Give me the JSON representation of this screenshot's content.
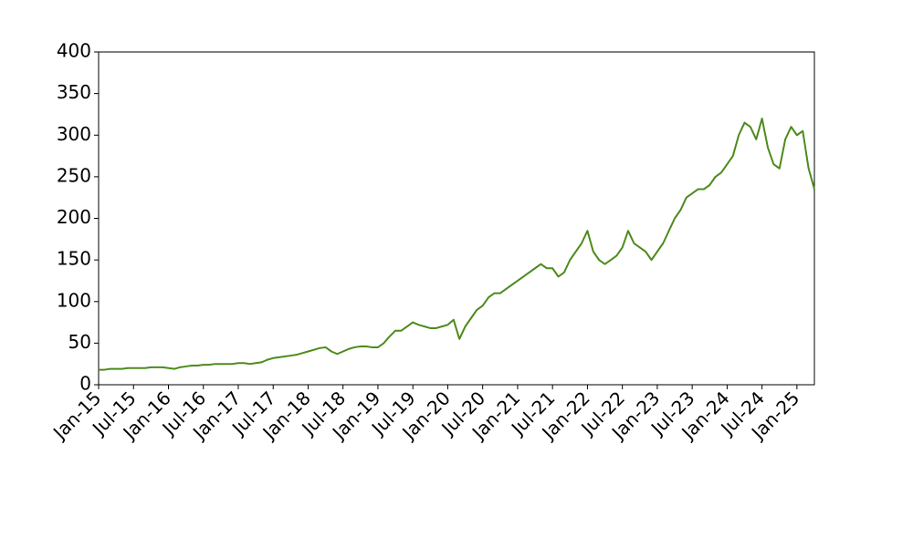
{
  "chart_data": {
    "type": "line",
    "x": [
      "2015-01",
      "2015-02",
      "2015-03",
      "2015-04",
      "2015-05",
      "2015-06",
      "2015-07",
      "2015-08",
      "2015-09",
      "2015-10",
      "2015-11",
      "2015-12",
      "2016-01",
      "2016-02",
      "2016-03",
      "2016-04",
      "2016-05",
      "2016-06",
      "2016-07",
      "2016-08",
      "2016-09",
      "2016-10",
      "2016-11",
      "2016-12",
      "2017-01",
      "2017-02",
      "2017-03",
      "2017-04",
      "2017-05",
      "2017-06",
      "2017-07",
      "2017-08",
      "2017-09",
      "2017-10",
      "2017-11",
      "2017-12",
      "2018-01",
      "2018-02",
      "2018-03",
      "2018-04",
      "2018-05",
      "2018-06",
      "2018-07",
      "2018-08",
      "2018-09",
      "2018-10",
      "2018-11",
      "2018-12",
      "2019-01",
      "2019-02",
      "2019-03",
      "2019-04",
      "2019-05",
      "2019-06",
      "2019-07",
      "2019-08",
      "2019-09",
      "2019-10",
      "2019-11",
      "2019-12",
      "2020-01",
      "2020-02",
      "2020-03",
      "2020-04",
      "2020-05",
      "2020-06",
      "2020-07",
      "2020-08",
      "2020-09",
      "2020-10",
      "2020-11",
      "2020-12",
      "2021-01",
      "2021-02",
      "2021-03",
      "2021-04",
      "2021-05",
      "2021-06",
      "2021-07",
      "2021-08",
      "2021-09",
      "2021-10",
      "2021-11",
      "2021-12",
      "2022-01",
      "2022-02",
      "2022-03",
      "2022-04",
      "2022-05",
      "2022-06",
      "2022-07",
      "2022-08",
      "2022-09",
      "2022-10",
      "2022-11",
      "2022-12",
      "2023-01",
      "2023-02",
      "2023-03",
      "2023-04",
      "2023-05",
      "2023-06",
      "2023-07",
      "2023-08",
      "2023-09",
      "2023-10",
      "2023-11",
      "2023-12",
      "2024-01",
      "2024-02",
      "2024-03",
      "2024-04",
      "2024-05",
      "2024-06",
      "2024-07",
      "2024-08",
      "2024-09",
      "2024-10",
      "2024-11",
      "2024-12",
      "2025-01",
      "2025-02",
      "2025-03",
      "2025-04"
    ],
    "series": [
      {
        "color": "#4d8b1c",
        "values": [
          18,
          18,
          19,
          19,
          19,
          20,
          20,
          20,
          20,
          21,
          21,
          21,
          20,
          19,
          21,
          22,
          23,
          23,
          24,
          24,
          25,
          25,
          25,
          25,
          26,
          26,
          25,
          26,
          27,
          30,
          32,
          33,
          34,
          35,
          36,
          38,
          40,
          42,
          44,
          45,
          40,
          37,
          40,
          43,
          45,
          46,
          46,
          45,
          45,
          50,
          58,
          65,
          65,
          70,
          75,
          72,
          70,
          68,
          68,
          70,
          72,
          78,
          55,
          70,
          80,
          90,
          95,
          105,
          110,
          110,
          115,
          120,
          125,
          130,
          135,
          140,
          145,
          140,
          140,
          130,
          135,
          150,
          160,
          170,
          185,
          160,
          150,
          145,
          150,
          155,
          165,
          185,
          170,
          165,
          160,
          150,
          160,
          170,
          185,
          200,
          210,
          225,
          230,
          235,
          235,
          240,
          250,
          255,
          265,
          275,
          300,
          315,
          310,
          295,
          320,
          285,
          265,
          260,
          295,
          310,
          300,
          305,
          260,
          235
        ]
      }
    ],
    "xlim": [
      "2015-01",
      "2025-04"
    ],
    "xticks": [
      {
        "value": "2015-01",
        "label": "Jan-15"
      },
      {
        "value": "2015-07",
        "label": "Jul-15"
      },
      {
        "value": "2016-01",
        "label": "Jan-16"
      },
      {
        "value": "2016-07",
        "label": "Jul-16"
      },
      {
        "value": "2017-01",
        "label": "Jan-17"
      },
      {
        "value": "2017-07",
        "label": "Jul-17"
      },
      {
        "value": "2018-01",
        "label": "Jan-18"
      },
      {
        "value": "2018-07",
        "label": "Jul-18"
      },
      {
        "value": "2019-01",
        "label": "Jan-19"
      },
      {
        "value": "2019-07",
        "label": "Jul-19"
      },
      {
        "value": "2020-01",
        "label": "Jan-20"
      },
      {
        "value": "2020-07",
        "label": "Jul-20"
      },
      {
        "value": "2021-01",
        "label": "Jan-21"
      },
      {
        "value": "2021-07",
        "label": "Jul-21"
      },
      {
        "value": "2022-01",
        "label": "Jan-22"
      },
      {
        "value": "2022-07",
        "label": "Jul-22"
      },
      {
        "value": "2023-01",
        "label": "Jan-23"
      },
      {
        "value": "2023-07",
        "label": "Jul-23"
      },
      {
        "value": "2024-01",
        "label": "Jan-24"
      },
      {
        "value": "2024-07",
        "label": "Jul-24"
      },
      {
        "value": "2025-01",
        "label": "Jan-25"
      }
    ],
    "ylim": [
      0,
      400
    ],
    "yticks": [
      0,
      50,
      100,
      150,
      200,
      250,
      300,
      350,
      400
    ],
    "grid": false
  }
}
